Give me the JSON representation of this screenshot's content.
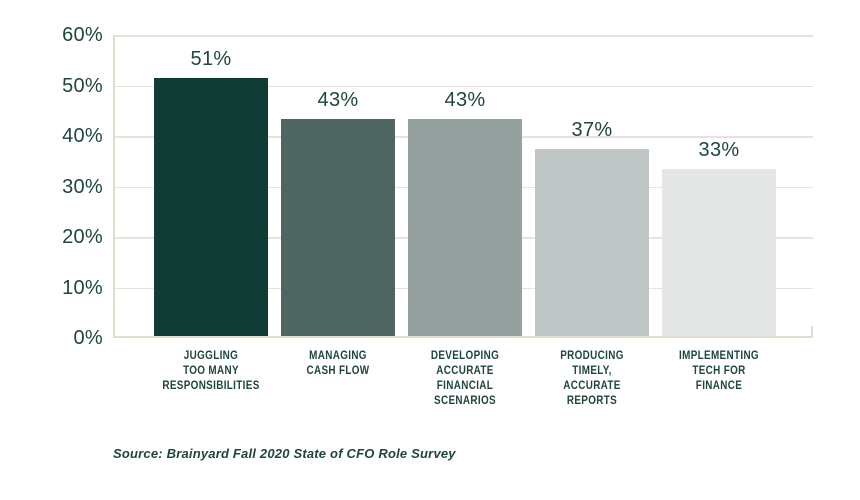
{
  "chart_data": {
    "type": "bar",
    "categories": [
      "JUGGLING TOO MANY RESPONSIBILITIES",
      "MANAGING CASH FLOW",
      "DEVELOPING ACCURATE FINANCIAL SCENARIOS",
      "PRODUCING TIMELY, ACCURATE REPORTS",
      "IMPLEMENTING TECH FOR FINANCE"
    ],
    "category_lines": [
      [
        "JUGGLING",
        "TOO MANY",
        "RESPONSIBILITIES"
      ],
      [
        "MANAGING",
        "CASH FLOW"
      ],
      [
        "DEVELOPING",
        "ACCURATE",
        "FINANCIAL",
        "SCENARIOS"
      ],
      [
        "PRODUCING",
        "TIMELY,",
        "ACCURATE",
        "REPORTS"
      ],
      [
        "IMPLEMENTING",
        "TECH FOR",
        "FINANCE"
      ]
    ],
    "values": [
      51,
      43,
      43,
      37,
      33
    ],
    "value_labels": [
      "51%",
      "43%",
      "43%",
      "37%",
      "33%"
    ],
    "bar_colors": [
      "#113b35",
      "#4e6562",
      "#94a19e",
      "#bfc6c5",
      "#e5e7e6"
    ],
    "y_ticks": [
      "60%",
      "50%",
      "40%",
      "30%",
      "20%",
      "10%",
      "0%"
    ],
    "ylim": [
      0,
      60
    ],
    "grid": true,
    "legend": "none",
    "title": "",
    "xlabel": "",
    "ylabel": "",
    "source": "Source: Brainyard Fall 2020 State of CFO Role Survey",
    "text_color": "#1e453f",
    "grid_color": "#e8e3d8",
    "axis_color": "#e0dbcd",
    "background_color": "#ffffff"
  }
}
